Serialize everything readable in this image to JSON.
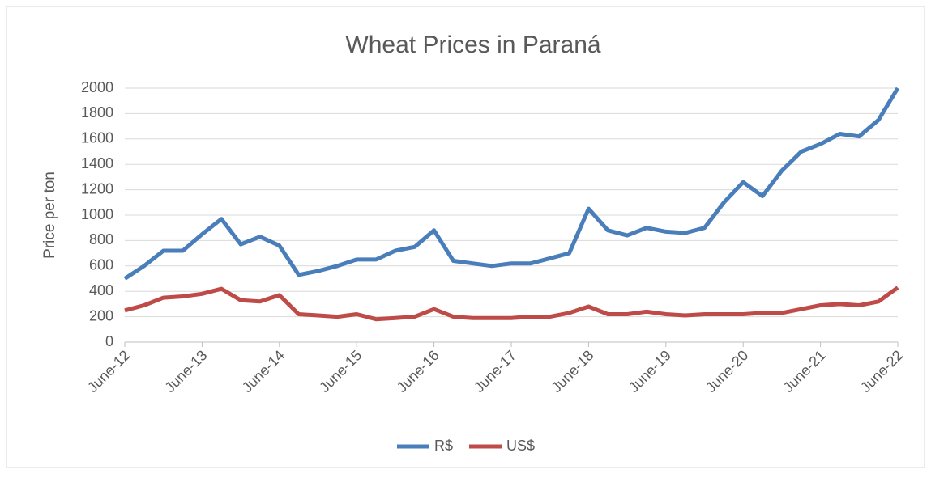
{
  "chart_data": {
    "type": "line",
    "title": "Wheat Prices in Paraná",
    "y_label": "Price per ton",
    "categories": [
      "June-12",
      null,
      null,
      null,
      "June-13",
      null,
      null,
      null,
      "June-14",
      null,
      null,
      null,
      "June-15",
      null,
      null,
      null,
      "June-16",
      null,
      null,
      null,
      "June-17",
      null,
      null,
      null,
      "June-18",
      null,
      null,
      null,
      "June-19",
      null,
      null,
      null,
      "June-20",
      null,
      null,
      null,
      "June-21",
      null,
      null,
      null,
      "June-22"
    ],
    "series": [
      {
        "name": "R$",
        "color": "#4a7ebb",
        "values": [
          500,
          600,
          720,
          720,
          850,
          970,
          770,
          830,
          760,
          530,
          560,
          600,
          650,
          650,
          720,
          750,
          880,
          640,
          620,
          600,
          620,
          620,
          660,
          700,
          1050,
          880,
          840,
          900,
          870,
          860,
          900,
          1100,
          1260,
          1150,
          1350,
          1500,
          1560,
          1640,
          1620,
          1750,
          2000
        ]
      },
      {
        "name": "US$",
        "color": "#be4b48",
        "values": [
          250,
          290,
          350,
          360,
          380,
          420,
          330,
          320,
          370,
          220,
          210,
          200,
          220,
          180,
          190,
          200,
          260,
          200,
          190,
          190,
          190,
          200,
          200,
          230,
          280,
          220,
          220,
          240,
          220,
          210,
          220,
          220,
          220,
          230,
          230,
          260,
          290,
          300,
          290,
          320,
          430
        ]
      }
    ],
    "ylim": [
      0,
      2000
    ],
    "yticks": [
      0,
      200,
      400,
      600,
      800,
      1000,
      1200,
      1400,
      1600,
      1800,
      2000
    ],
    "grid": true,
    "legend": "bottom"
  }
}
